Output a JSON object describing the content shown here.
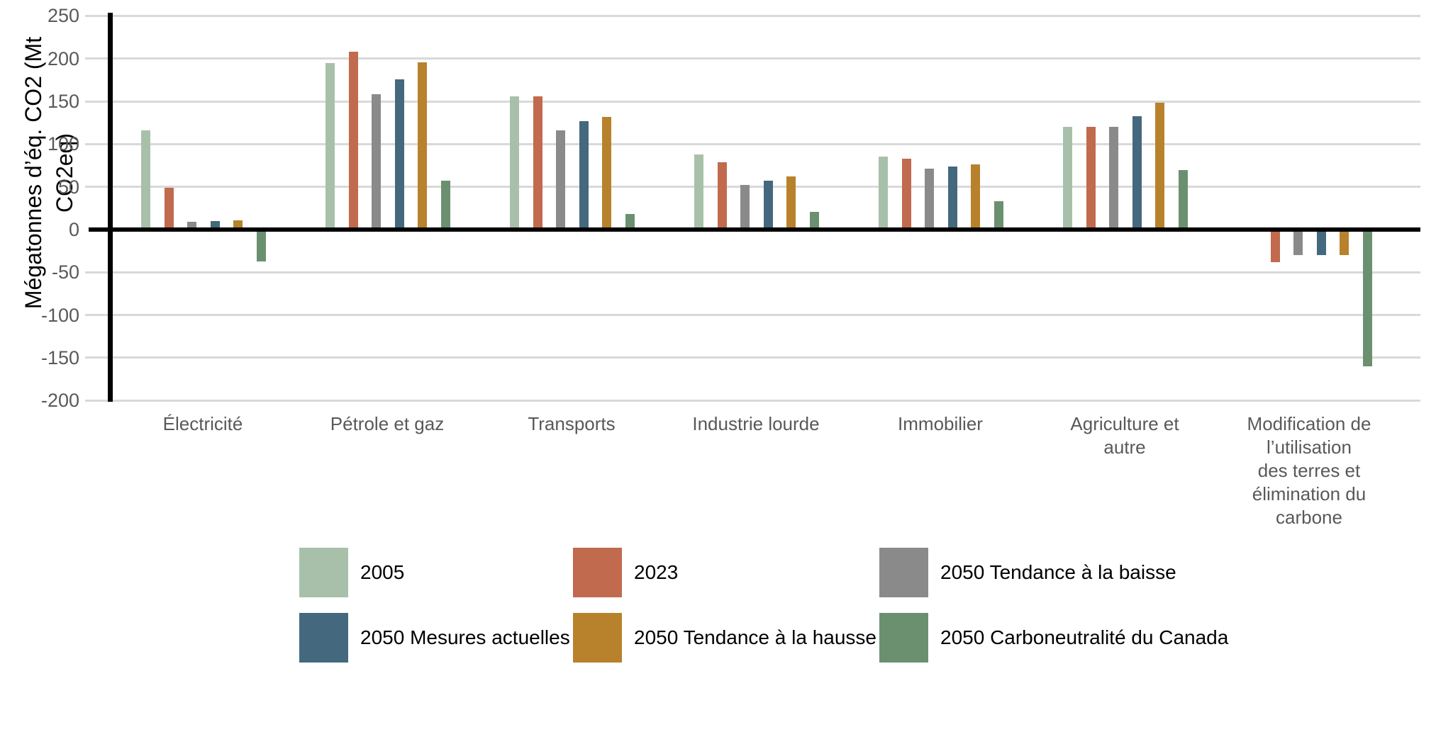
{
  "chart_data": {
    "type": "bar",
    "title": "",
    "ylabel": "Mégatonnes d’éq. CO2 (Mt CO2eq)",
    "xlabel": "",
    "ylim": [
      -200,
      250
    ],
    "yticks": [
      250,
      200,
      150,
      100,
      50,
      0,
      -50,
      -100,
      -150,
      -200
    ],
    "grid": "horizontal",
    "legend_position": "bottom",
    "categories": [
      "Électricité",
      "Pétrole et gaz",
      "Transports",
      "Industrie lourde",
      "Immobilier",
      "Agriculture et\nautre",
      "Modification de\nl’utilisation\ndes terres et\nélimination du\ncarbone"
    ],
    "series": [
      {
        "name": "2005",
        "color": "#a8c0aa",
        "values": [
          116,
          195,
          156,
          88,
          85,
          120,
          0
        ]
      },
      {
        "name": "2023",
        "color": "#c16a4d",
        "values": [
          49,
          208,
          156,
          79,
          83,
          120,
          -38
        ]
      },
      {
        "name": "2050 Tendance à la baisse",
        "color": "#8a8a8a",
        "values": [
          9,
          158,
          116,
          52,
          71,
          120,
          -30
        ]
      },
      {
        "name": "2050 Mesures actuelles",
        "color": "#44687e",
        "values": [
          10,
          176,
          127,
          57,
          74,
          133,
          -30
        ]
      },
      {
        "name": "2050 Tendance à la hausse",
        "color": "#b8812c",
        "values": [
          11,
          196,
          132,
          62,
          76,
          148,
          -30
        ]
      },
      {
        "name": "2050 Carboneutralité du Canada",
        "color": "#6b9070",
        "values": [
          -37,
          57,
          18,
          21,
          33,
          70,
          -160
        ]
      }
    ]
  },
  "colors": {
    "grid": "#d9d9d9",
    "axis": "#000000",
    "tick_label": "#595959",
    "category_label": "#595959",
    "legend_label": "#000000"
  }
}
